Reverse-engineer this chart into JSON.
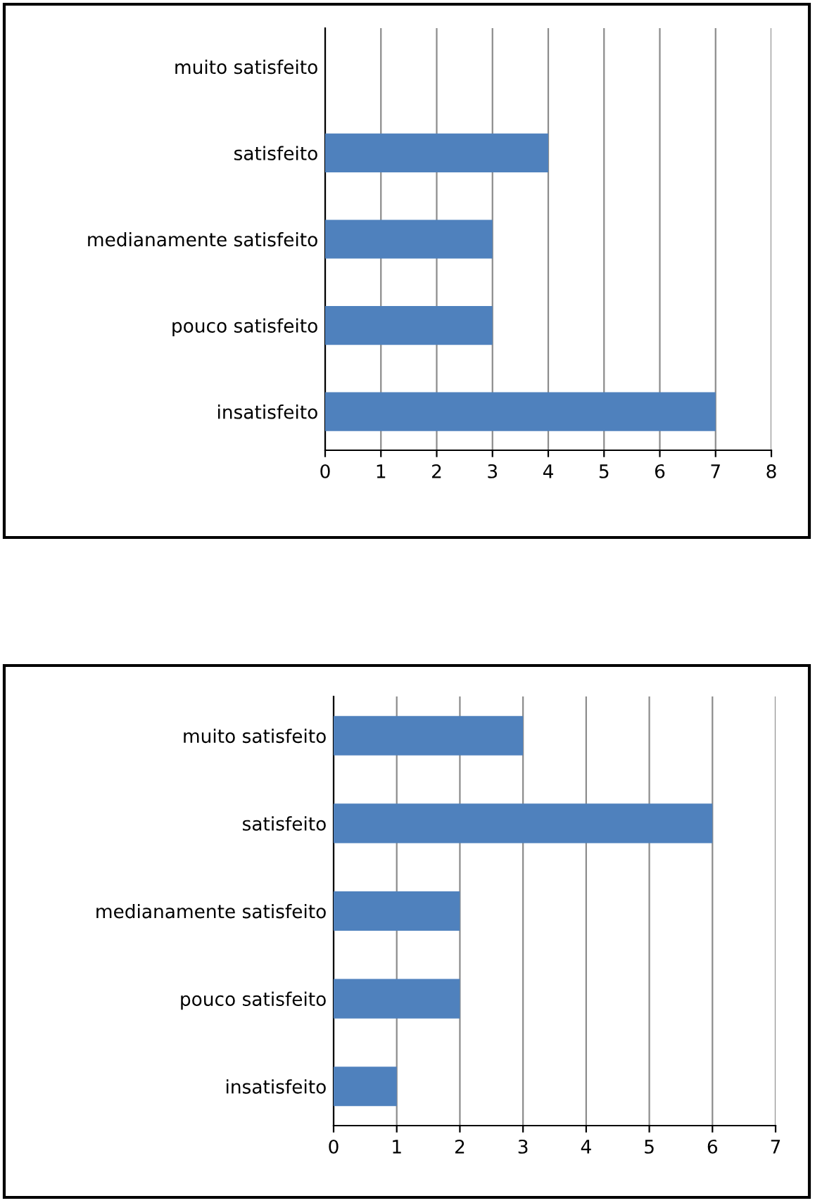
{
  "chart_data": [
    {
      "type": "bar",
      "orientation": "horizontal",
      "categories": [
        "muito satisfeito",
        "satisfeito",
        "medianamente satisfeito",
        "pouco satisfeito",
        "insatisfeito"
      ],
      "values": [
        0,
        4,
        3,
        3,
        7
      ],
      "color": "#4f81bd",
      "xlim": [
        0,
        8
      ],
      "xticks": [
        0,
        1,
        2,
        3,
        4,
        5,
        6,
        7,
        8
      ],
      "grid": "x",
      "legend": false
    },
    {
      "type": "bar",
      "orientation": "horizontal",
      "categories": [
        "muito satisfeito",
        "satisfeito",
        "medianamente satisfeito",
        "pouco satisfeito",
        "insatisfeito"
      ],
      "values": [
        3,
        6,
        2,
        2,
        1
      ],
      "color": "#4f81bd",
      "xlim": [
        0,
        7
      ],
      "xticks": [
        0,
        1,
        2,
        3,
        4,
        5,
        6,
        7
      ],
      "grid": "x",
      "legend": false
    }
  ]
}
